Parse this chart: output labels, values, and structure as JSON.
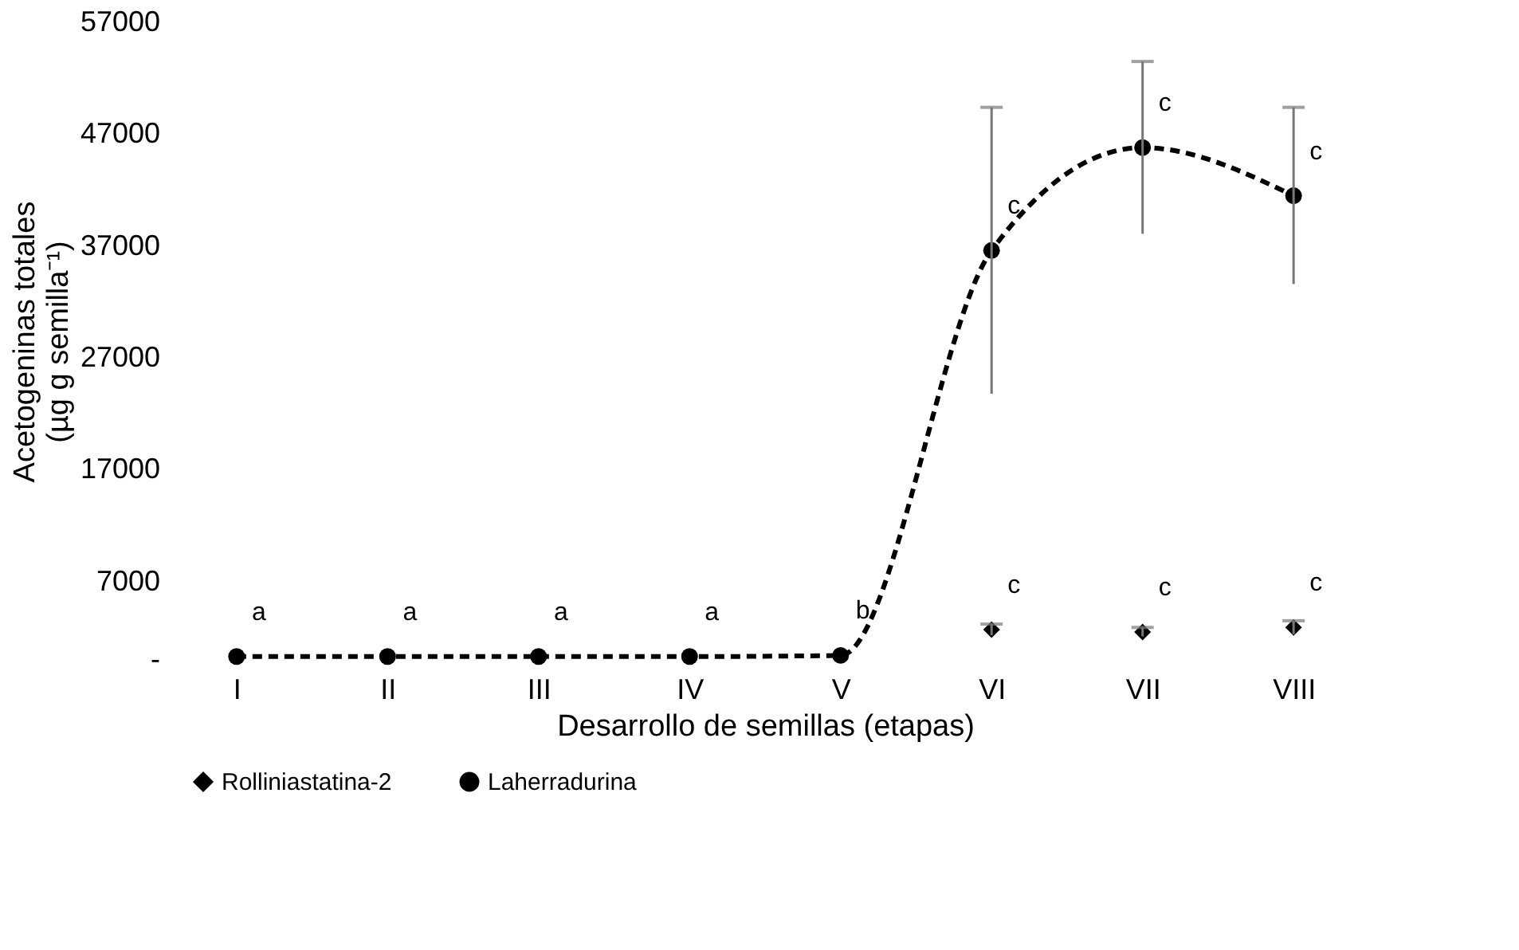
{
  "chart_data": {
    "type": "line",
    "xlabel": "Desarrollo de semillas (etapas)",
    "ylabel": "Acetogeninas totales (µg g semilla⁻¹)",
    "categories": [
      "I",
      "II",
      "III",
      "IV",
      "V",
      "VI",
      "VII",
      "VIII"
    ],
    "ylim": [
      0,
      57000
    ],
    "yticks": [
      {
        "value": 0,
        "label": "-"
      },
      7000,
      17000,
      27000,
      37000,
      47000,
      57000
    ],
    "grid": false,
    "legend": "bottom",
    "line_style": "dashed",
    "series": [
      {
        "name": "Rolliniastatina-2",
        "type": "scatter",
        "marker": "diamond",
        "color": "#000000",
        "values": [
          null,
          null,
          null,
          null,
          null,
          2700,
          2500,
          2900
        ],
        "errors": [
          null,
          null,
          null,
          null,
          null,
          500,
          400,
          600
        ]
      },
      {
        "name": "Laherradurina",
        "marker": "circle",
        "color": "#000000",
        "values": [
          300,
          300,
          300,
          300,
          400,
          36600,
          45800,
          41500
        ],
        "errors": [
          null,
          null,
          null,
          null,
          null,
          12800,
          7700,
          7900
        ]
      }
    ],
    "annotations": [
      {
        "text": "a",
        "x": "I",
        "y": 300
      },
      {
        "text": "a",
        "x": "II",
        "y": 300
      },
      {
        "text": "a",
        "x": "III",
        "y": 300
      },
      {
        "text": "a",
        "x": "IV",
        "y": 300
      },
      {
        "text": "b",
        "x": "V",
        "y": 400
      },
      {
        "text": "c",
        "x": "VI",
        "y": 36600
      },
      {
        "text": "c",
        "x": "VII",
        "y": 45800
      },
      {
        "text": "c",
        "x": "VIII",
        "y": 41500
      },
      {
        "text": "c",
        "x": "VI",
        "y": 2700
      },
      {
        "text": "c",
        "x": "VII",
        "y": 2500
      },
      {
        "text": "c",
        "x": "VIII",
        "y": 2900
      }
    ]
  }
}
